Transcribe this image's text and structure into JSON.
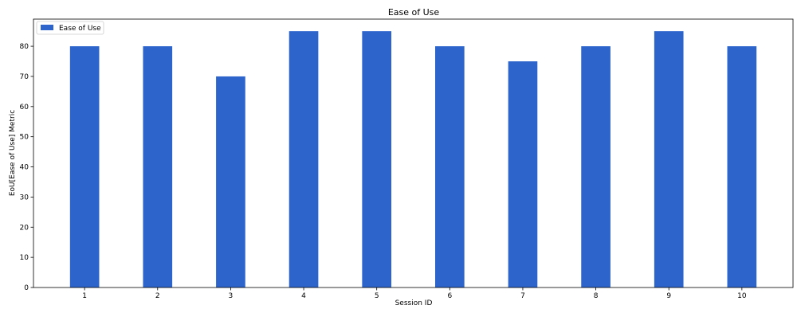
{
  "chart_data": {
    "type": "bar",
    "title": "Ease of Use",
    "xlabel": "Session ID",
    "ylabel": "EoU[Ease of Use] Metric",
    "categories": [
      "1",
      "2",
      "3",
      "4",
      "5",
      "6",
      "7",
      "8",
      "9",
      "10"
    ],
    "series": [
      {
        "name": "Ease of Use",
        "values": [
          80,
          80,
          70,
          85,
          85,
          80,
          75,
          80,
          85,
          80
        ],
        "color": "#2c64cc"
      }
    ],
    "yticks": [
      "0",
      "10",
      "20",
      "30",
      "40",
      "50",
      "60",
      "70",
      "80"
    ],
    "ylim": [
      0,
      89
    ],
    "grid": false,
    "legend_position": "top-left"
  }
}
